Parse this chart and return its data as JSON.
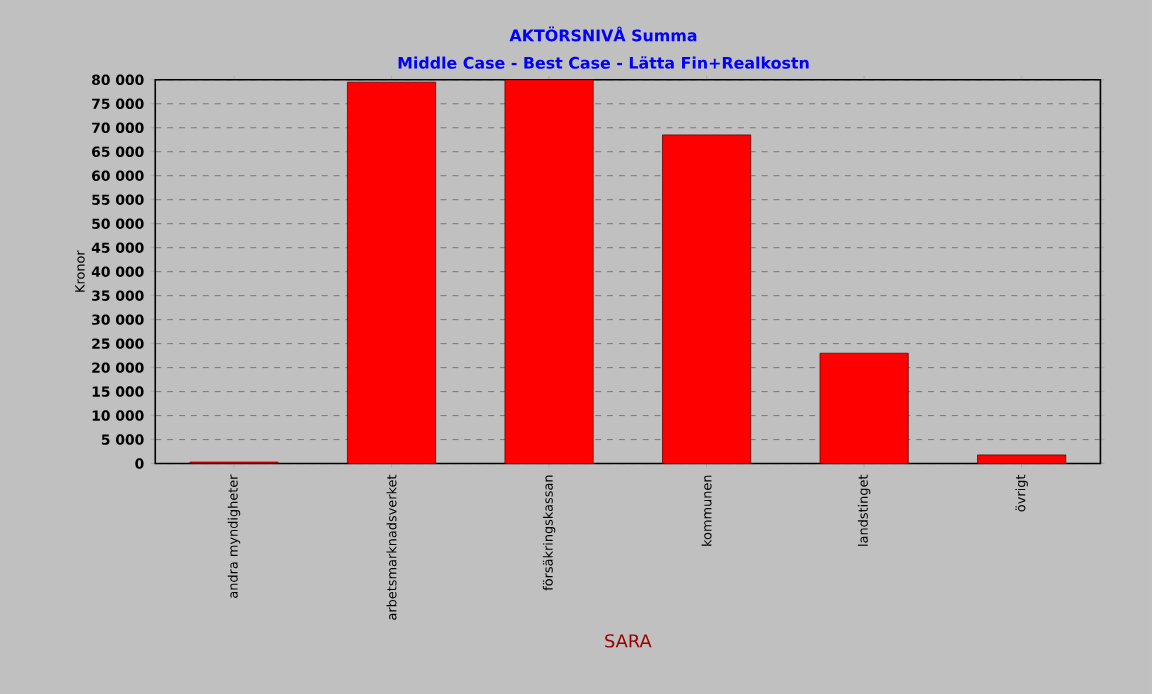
{
  "chart_data": {
    "type": "bar",
    "title": "AKTÖRSNIVÅ Summa",
    "subtitle": "Middle Case - Best Case - Lätta Fin+Realkostn",
    "xlabel": "SARA",
    "ylabel": "Kronor",
    "categories": [
      "andra myndigheter",
      "arbetsmarknadsverket",
      "försäkringskassan",
      "kommunen",
      "landstinget",
      "övrigt"
    ],
    "values": [
      300,
      79500,
      80000,
      68500,
      23000,
      1800
    ],
    "color": "#ff0000",
    "ylim": [
      0,
      80000
    ],
    "yticks": [
      {
        "value": 0,
        "label": "0"
      },
      {
        "value": 5000,
        "label": "5 000"
      },
      {
        "value": 10000,
        "label": "10 000"
      },
      {
        "value": 15000,
        "label": "15 000"
      },
      {
        "value": 20000,
        "label": "20 000"
      },
      {
        "value": 25000,
        "label": "25 000"
      },
      {
        "value": 30000,
        "label": "30 000"
      },
      {
        "value": 35000,
        "label": "35 000"
      },
      {
        "value": 40000,
        "label": "40 000"
      },
      {
        "value": 45000,
        "label": "45 000"
      },
      {
        "value": 50000,
        "label": "50 000"
      },
      {
        "value": 55000,
        "label": "55 000"
      },
      {
        "value": 60000,
        "label": "60 000"
      },
      {
        "value": 65000,
        "label": "65 000"
      },
      {
        "value": 70000,
        "label": "70 000"
      },
      {
        "value": 75000,
        "label": "75 000"
      },
      {
        "value": 80000,
        "label": "80 000"
      }
    ],
    "grid": "y"
  }
}
